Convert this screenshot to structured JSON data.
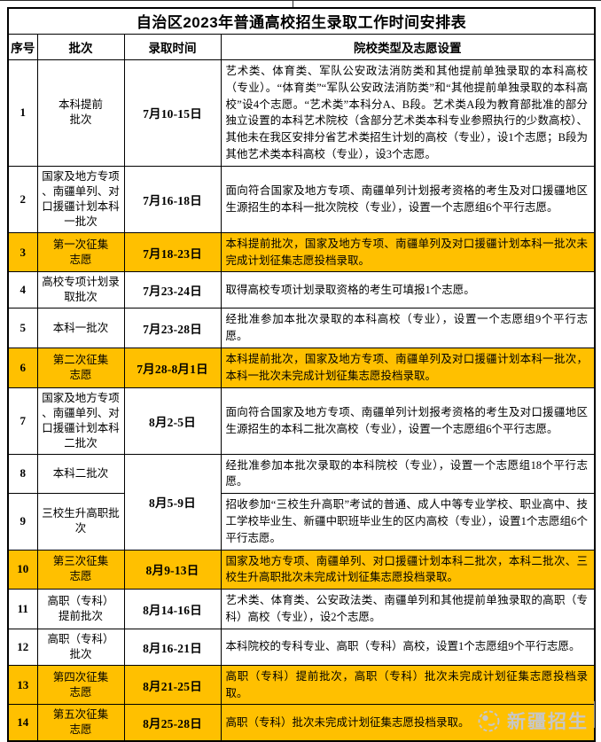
{
  "title": "自治区2023年普通高校招生录取工作时间安排表",
  "colors": {
    "highlight": "#ffc000",
    "border": "#000000",
    "watermark": "#c7c7c7"
  },
  "header": {
    "no": "序号",
    "batch": "批次",
    "time": "录取时间",
    "desc": "院校类型及志愿设置"
  },
  "table": {
    "rows": [
      {
        "no": "1",
        "batch": "本科提前\n批次",
        "time": "7月10-15日",
        "desc": "艺术类、体育类、军队公安政法消防类和其他提前单独录取的本科高校（专业）。“体育类”“军队公安政法消防类”和“其他提前单独录取的本科高校”设4个志愿。“艺术类”本科分A、B段。艺术类A段为教育部批准的部分独立设置的本科艺术院校（含部分艺术类本科专业参照执行的少数高校）、其他未在我区安排分省艺术类招生计划的高校（专业），设1个志愿；B段为其他艺术类本科高校（专业），设3个志愿。",
        "highlight": false
      },
      {
        "no": "2",
        "batch": "国家及地方专项\n、南疆单列、对\n口援疆计划本科\n一批次",
        "time": "7月16-18日",
        "desc": "面向符合国家及地方专项、南疆单列计划报考资格的考生及对口援疆地区生源招生的本科一批次院校（专业），设置一个志愿组6个平行志愿。",
        "highlight": false
      },
      {
        "no": "3",
        "batch": "第一次征集\n志愿",
        "time": "7月18-23日",
        "desc": "本科提前批次，国家及地方专项、南疆单列及对口援疆计划本科一批次未完成计划征集志愿投档录取。",
        "highlight": true
      },
      {
        "no": "4",
        "batch": "高校专项计划录\n取批次",
        "time": "7月23-24日",
        "desc": "取得高校专项计划录取资格的考生可填报1个志愿。",
        "highlight": false
      },
      {
        "no": "5",
        "batch": "本科一批次",
        "time": "7月23-28日",
        "desc": "经批准参加本批次录取的本科高校（专业），设置一个志愿组9个平行志愿。",
        "highlight": false
      },
      {
        "no": "6",
        "batch": "第二次征集\n志愿",
        "time": "7月28-8月1日",
        "desc": "本科提前批次，国家及地方专项、南疆单列及对口援疆计划本科一批次，本科一批次未完成计划征集志愿投档录取。",
        "highlight": true
      },
      {
        "no": "7",
        "batch": "国家及地方专项\n、南疆单列、对\n口援疆计划本科\n二批次",
        "time": "8月2-5日",
        "desc": "面向符合国家及地方专项、南疆单列计划报考资格的考生及对口援疆地区生源招生的本科二批次高校（专业），设置一个志愿组6个平行志愿。",
        "highlight": false
      },
      {
        "no": "8",
        "batch": "本科二批次",
        "time": "8月5-9日",
        "time_rowspan": 2,
        "desc": "经批准参加本批次录取的本科院校（专业），设置一个志愿组18个平行志愿。",
        "highlight": false
      },
      {
        "no": "9",
        "batch": "三校生升高职批\n次",
        "time": null,
        "desc": "招收参加“三校生升高职”考试的普通、成人中等专业学校、职业高中、技工学校毕业生、新疆中职班毕业生的区内高校（专业），设置1个志愿组6个平行志愿。",
        "highlight": false
      },
      {
        "no": "10",
        "batch": "第三次征集\n志愿",
        "time": "8月9-13日",
        "desc": "国家及地方专项、南疆单列、对口援疆计划本科二批次，本科二批次、三校生升高职批次未完成计划征集志愿投档录取。",
        "highlight": true
      },
      {
        "no": "11",
        "batch": "高职（专科）\n提前批次",
        "time": "8月14-16日",
        "desc": "艺术类、体育类、公安政法类、南疆单列和其他提前单独录取的高职（专科）高校（专业），设2个志愿。",
        "highlight": false
      },
      {
        "no": "12",
        "batch": "高职（专科）\n批次",
        "time": "8月16-21日",
        "desc": "本科院校的专科专业、高职（专科）高校，设置1个志愿组9个平行志愿。",
        "highlight": false
      },
      {
        "no": "13",
        "batch": "第四次征集\n志愿",
        "time": "8月21-25日",
        "desc": "高职（专科）提前批次，高职（专科）批次未完成计划征集志愿投档录取。",
        "highlight": true
      },
      {
        "no": "14",
        "batch": "第五次征集\n志愿",
        "time": "8月25-28日",
        "desc": "高职（专科）批次未完成计划征集志愿投档录取。",
        "highlight": true
      }
    ]
  },
  "watermark": {
    "label": "新疆招生",
    "icon": "xinjiang-zhaosheng-logo"
  }
}
